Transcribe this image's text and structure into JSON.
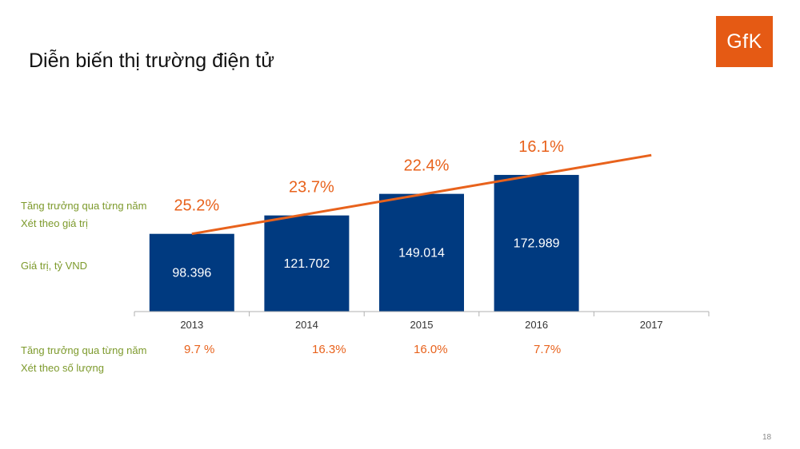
{
  "slide": {
    "title": "Diễn biến thị trường điện tử",
    "logo_text": "GfK",
    "page_number": "18"
  },
  "labels": {
    "growth_value_line1": "Tăng trưởng qua từng năm",
    "growth_value_line2": "Xét theo giá trị",
    "value_unit": "Giá trị, tỷ VND",
    "growth_volume_line1": "Tăng trưởng qua từng năm",
    "growth_volume_line2": "Xét theo số lượng"
  },
  "colors": {
    "bar": "#003a80",
    "line": "#e8621c",
    "label_green": "#7d9a2c",
    "axis": "#b0b0b0",
    "tick_text": "#333333"
  },
  "chart_data": {
    "type": "bar",
    "title": "Diễn biến thị trường điện tử",
    "categories": [
      "2013",
      "2014",
      "2015",
      "2016",
      "2017"
    ],
    "series": [
      {
        "name": "Giá trị, tỷ VND",
        "values": [
          98396,
          121702,
          149014,
          172989,
          null
        ],
        "labels": [
          "98.396",
          "121.702",
          "149.014",
          "172.989",
          ""
        ]
      }
    ],
    "growth_by_value": {
      "name": "Tăng trưởng qua từng năm - Xét theo giá trị",
      "labels": [
        "25.2%",
        "23.7%",
        "22.4%",
        "16.1%"
      ]
    },
    "growth_by_volume": {
      "name": "Tăng trưởng qua từng năm - Xét theo số lượng",
      "labels": [
        "9.7 %",
        "16.3%",
        "16.0%",
        "7.7%"
      ]
    },
    "trend_line": {
      "type": "line",
      "from_category": "2013",
      "to_category": "2017",
      "start_value": 98396,
      "end_value": 198000
    },
    "ylim": [
      0,
      180000
    ],
    "xlabel": "",
    "ylabel": ""
  }
}
